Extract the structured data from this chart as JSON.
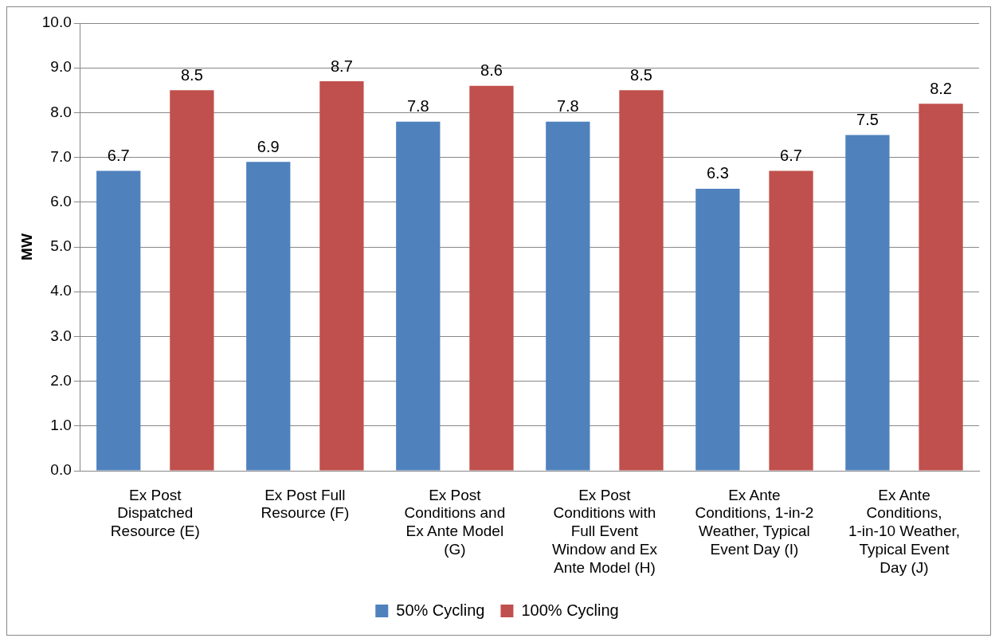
{
  "chart_data": {
    "type": "bar",
    "ylabel": "MW",
    "categories": [
      "Ex Post Dispatched Resource (E)",
      "Ex Post Full Resource (F)",
      "Ex Post Conditions and Ex Ante Model (G)",
      "Ex Post Conditions with Full Event Window and Ex Ante Model (H)",
      "Ex Ante Conditions, 1-in-2 Weather, Typical Event Day (I)",
      "Ex Ante Conditions, 1-in-10 Weather, Typical Event Day (J)"
    ],
    "series": [
      {
        "name": "50% Cycling",
        "color": "#4f81bd",
        "values": [
          6.7,
          6.9,
          7.8,
          7.8,
          6.3,
          7.5
        ]
      },
      {
        "name": "100% Cycling",
        "color": "#c0504d",
        "values": [
          8.5,
          8.7,
          8.6,
          8.5,
          6.7,
          8.2
        ]
      }
    ],
    "ylim": [
      0,
      10
    ],
    "yticks": [
      {
        "value": 0,
        "label": "0.0"
      },
      {
        "value": 1,
        "label": "1.0"
      },
      {
        "value": 2,
        "label": "2.0"
      },
      {
        "value": 3,
        "label": "3.0"
      },
      {
        "value": 4,
        "label": "4.0"
      },
      {
        "value": 5,
        "label": "5.0"
      },
      {
        "value": 6,
        "label": "6.0"
      },
      {
        "value": 7,
        "label": "7.0"
      },
      {
        "value": 8,
        "label": "8.0"
      },
      {
        "value": 9,
        "label": "9.0"
      },
      {
        "value": 10,
        "label": "10.0"
      }
    ],
    "grid": "y",
    "legend": "bottom",
    "data_labels": true
  }
}
